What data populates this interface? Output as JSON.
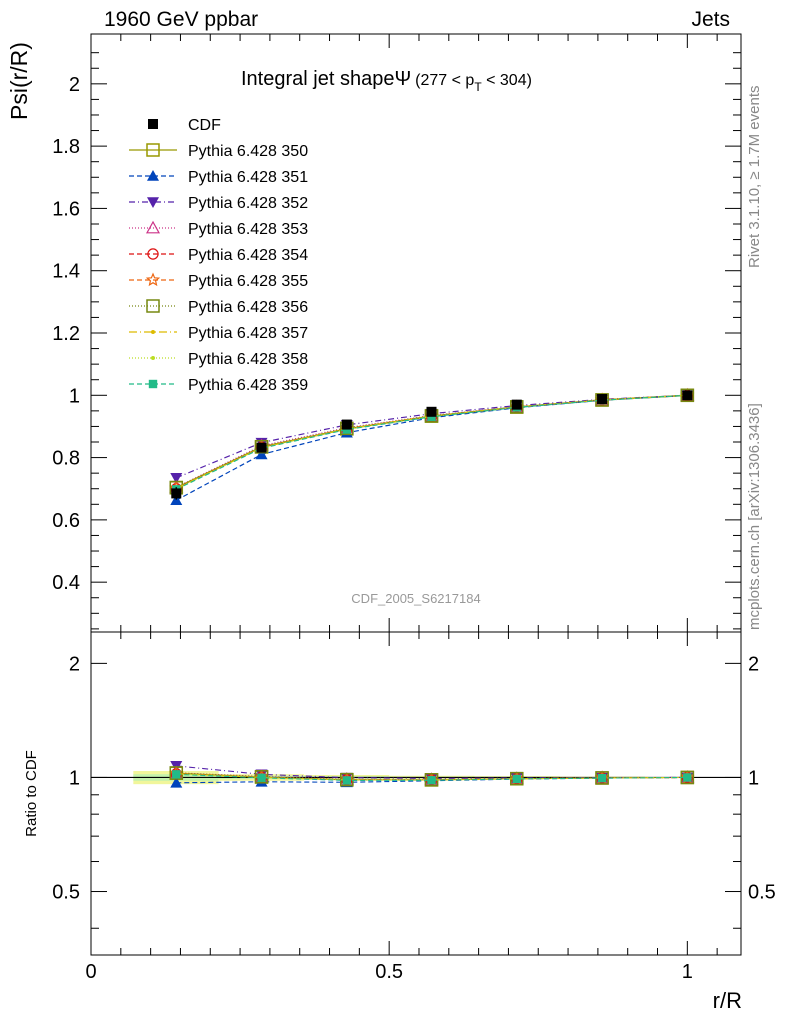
{
  "header": {
    "left": "1960 GeV ppbar",
    "right": "Jets"
  },
  "side_labels": {
    "rivet": "Rivet 3.1.10, ≥ 1.7M events",
    "mcplots": "mcplots.cern.ch [arXiv:1306.3436]"
  },
  "watermark": "CDF_2005_S6217184",
  "chart_data": [
    {
      "type": "line",
      "title_main": "Integral jet shapeΨ",
      "title_range": "(277 < p",
      "title_sub": "T",
      "title_end": " < 304)",
      "xlabel": "r/R",
      "ylabel": "Psi(r/R)",
      "xlim": [
        0,
        1.09
      ],
      "ylim": [
        0.24,
        2.16
      ],
      "yticks": [
        0.4,
        0.6,
        0.8,
        1,
        1.2,
        1.4,
        1.6,
        1.8,
        2
      ],
      "ytick_labels": [
        "0.4",
        "0.6",
        "0.8",
        "1",
        "1.2",
        "1.4",
        "1.6",
        "1.8",
        "2"
      ],
      "x": [
        0.143,
        0.286,
        0.429,
        0.571,
        0.714,
        0.857,
        1.0
      ],
      "data": {
        "name": "CDF",
        "values": [
          0.685,
          0.832,
          0.906,
          0.947,
          0.97,
          0.988,
          1.0
        ],
        "errors": [
          0.02,
          0.012,
          0.01,
          0.008,
          0.006,
          0.004,
          0.0
        ]
      },
      "series": [
        {
          "name": "Pythia 6.428 350",
          "color": "#999900",
          "dash": "",
          "marker": "open-square",
          "values": [
            0.703,
            0.834,
            0.892,
            0.933,
            0.962,
            0.985,
            1.0
          ]
        },
        {
          "name": "Pythia 6.428 351",
          "color": "#0044bb",
          "dash": "5,3",
          "marker": "triangle-up",
          "values": [
            0.663,
            0.81,
            0.88,
            0.928,
            0.96,
            0.984,
            1.0
          ]
        },
        {
          "name": "Pythia 6.428 352",
          "color": "#5522aa",
          "dash": "6,3,1,3",
          "marker": "triangle-down",
          "values": [
            0.735,
            0.848,
            0.905,
            0.941,
            0.967,
            0.987,
            1.0
          ]
        },
        {
          "name": "Pythia 6.428 353",
          "color": "#cc3388",
          "dash": "1,2",
          "marker": "open-triangle",
          "values": [
            0.705,
            0.838,
            0.896,
            0.935,
            0.963,
            0.985,
            1.0
          ]
        },
        {
          "name": "Pythia 6.428 354",
          "color": "#dd1111",
          "dash": "5,3",
          "marker": "open-circle",
          "values": [
            0.7,
            0.833,
            0.893,
            0.933,
            0.962,
            0.985,
            1.0
          ]
        },
        {
          "name": "Pythia 6.428 355",
          "color": "#ee6611",
          "dash": "5,3",
          "marker": "open-star",
          "values": [
            0.702,
            0.833,
            0.893,
            0.933,
            0.962,
            0.985,
            1.0
          ]
        },
        {
          "name": "Pythia 6.428 356",
          "color": "#778811",
          "dash": "1,2",
          "marker": "open-square",
          "values": [
            0.704,
            0.835,
            0.894,
            0.934,
            0.963,
            0.985,
            1.0
          ]
        },
        {
          "name": "Pythia 6.428 357",
          "color": "#ddbb00",
          "dash": "8,3,1,3",
          "marker": "small-dot",
          "values": [
            0.701,
            0.832,
            0.892,
            0.933,
            0.962,
            0.985,
            1.0
          ]
        },
        {
          "name": "Pythia 6.428 358",
          "color": "#bbdd22",
          "dash": "1,2",
          "marker": "small-dot",
          "values": [
            0.7,
            0.832,
            0.892,
            0.932,
            0.962,
            0.985,
            1.0
          ]
        },
        {
          "name": "Pythia 6.428 359",
          "color": "#22bb88",
          "dash": "5,3",
          "marker": "filled-square",
          "values": [
            0.698,
            0.83,
            0.89,
            0.931,
            0.961,
            0.984,
            1.0
          ]
        }
      ]
    },
    {
      "type": "line",
      "xlabel": "r/R",
      "ylabel": "Ratio to CDF",
      "xlim": [
        0,
        1.09
      ],
      "ylim": [
        0.34,
        2.42
      ],
      "yticks": [
        0.5,
        1,
        2
      ],
      "ytick_labels": [
        "0.5",
        "1",
        "2"
      ],
      "xticks": [
        0,
        0.5,
        1
      ],
      "xtick_labels": [
        "0",
        "0.5",
        "1"
      ],
      "x": [
        0.143,
        0.286,
        0.429,
        0.571,
        0.714,
        0.857,
        1.0
      ],
      "band": {
        "x_edges": [
          0.071,
          0.214,
          0.357,
          0.5,
          0.643,
          0.786,
          0.929,
          1.071
        ],
        "half_width": [
          0.04,
          0.02,
          0.015,
          0.01,
          0.008,
          0.005,
          0.0
        ]
      },
      "series_values": [
        [
          1.026,
          1.002,
          0.985,
          0.985,
          0.992,
          0.997,
          1.0
        ],
        [
          0.968,
          0.974,
          0.971,
          0.98,
          0.99,
          0.996,
          1.0
        ],
        [
          1.073,
          1.019,
          0.999,
          0.994,
          0.997,
          0.999,
          1.0
        ],
        [
          1.029,
          1.007,
          0.989,
          0.987,
          0.993,
          0.997,
          1.0
        ],
        [
          1.022,
          1.001,
          0.986,
          0.985,
          0.992,
          0.997,
          1.0
        ],
        [
          1.025,
          1.001,
          0.986,
          0.985,
          0.992,
          0.997,
          1.0
        ],
        [
          1.028,
          1.004,
          0.987,
          0.986,
          0.993,
          0.997,
          1.0
        ],
        [
          1.023,
          1.0,
          0.985,
          0.985,
          0.992,
          0.997,
          1.0
        ],
        [
          1.022,
          1.0,
          0.985,
          0.984,
          0.992,
          0.997,
          1.0
        ],
        [
          1.019,
          0.998,
          0.982,
          0.983,
          0.991,
          0.996,
          1.0
        ]
      ]
    }
  ]
}
